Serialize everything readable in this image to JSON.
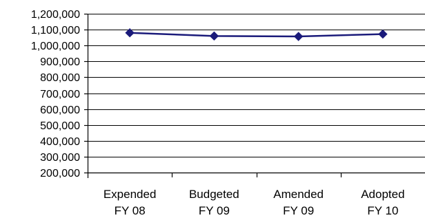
{
  "chart_data": {
    "type": "line",
    "categories": [
      [
        "Expended",
        "FY 08"
      ],
      [
        "Budgeted",
        "FY 09"
      ],
      [
        "Amended",
        "FY 09"
      ],
      [
        "Adopted",
        "FY 10"
      ]
    ],
    "series": [
      {
        "values": [
          1080000,
          1060000,
          1057000,
          1072000
        ],
        "color": "#1a1a7a",
        "marker": "diamond"
      }
    ],
    "ylim": [
      200000,
      1200000
    ],
    "ytick_step": 100000,
    "yticks": [
      "200,000",
      "300,000",
      "400,000",
      "500,000",
      "600,000",
      "700,000",
      "800,000",
      "900,000",
      "1,000,000",
      "1,100,000",
      "1,200,000"
    ],
    "grid": true,
    "legend": "none"
  }
}
